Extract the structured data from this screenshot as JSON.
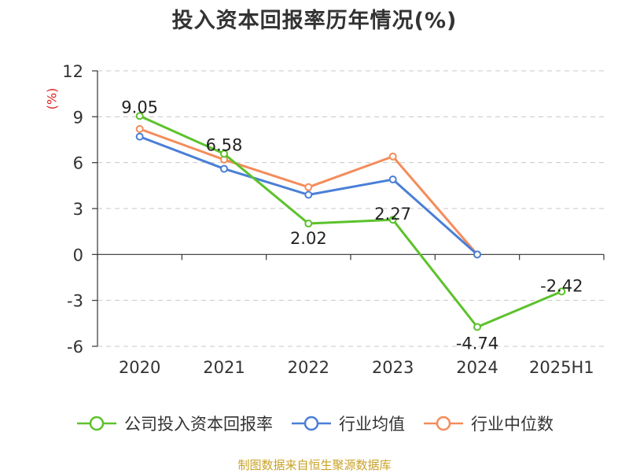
{
  "title": "投入资本回报率历年情况(%)",
  "source": "制图数据来自恒生聚源数据库",
  "chart_data": {
    "type": "line",
    "title": "投入资本回报率历年情况(%)",
    "ylabel": "(%)",
    "xlabel": "",
    "categories": [
      "2020",
      "2021",
      "2022",
      "2023",
      "2024",
      "2025H1"
    ],
    "ylim": [
      -6,
      12
    ],
    "yticks": [
      -6,
      -3,
      0,
      3,
      6,
      9,
      12
    ],
    "ytick_labels": [
      "-6",
      "-3",
      "0",
      "3",
      "6",
      "9",
      "12"
    ],
    "grid": true,
    "legend_position": "bottom",
    "series": [
      {
        "name": "公司投入资本回报率",
        "color": "#5cc22c",
        "values": [
          9.05,
          6.58,
          2.02,
          2.27,
          -4.74,
          -2.42
        ],
        "labels": [
          "9.05",
          "6.58",
          "2.02",
          "2.27",
          "-4.74",
          "-2.42"
        ]
      },
      {
        "name": "行业均值",
        "color": "#4a7fd6",
        "values": [
          7.7,
          5.6,
          3.9,
          4.9,
          0.0,
          null
        ]
      },
      {
        "name": "行业中位数",
        "color": "#f48c5a",
        "values": [
          8.2,
          6.2,
          4.4,
          6.4,
          0.0,
          null
        ]
      }
    ]
  }
}
